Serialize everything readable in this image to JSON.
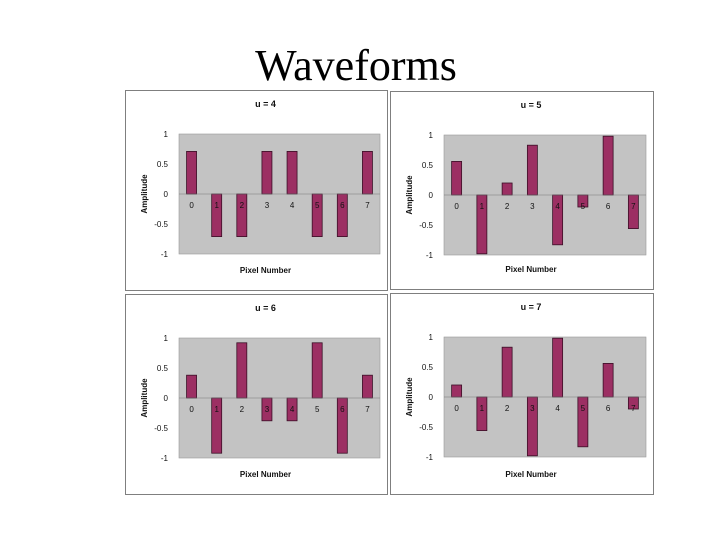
{
  "slide": {
    "title": "Waveforms"
  },
  "colors": {
    "bar": "#9c2f63",
    "bar_stroke": "#3a0f26",
    "plot_bg": "#c3c3c3",
    "frame": "#7f7f7f"
  },
  "chart_data": [
    {
      "type": "bar",
      "title": "u = 4",
      "xlabel": "Pixel Number",
      "ylabel": "Amplitude",
      "categories": [
        "0",
        "1",
        "2",
        "3",
        "4",
        "5",
        "6",
        "7"
      ],
      "values": [
        0.71,
        -0.71,
        -0.71,
        0.71,
        0.71,
        -0.71,
        -0.71,
        0.71
      ],
      "ylim": [
        -1,
        1
      ],
      "yticks": [
        "1",
        "0.5",
        "0",
        "-0.5",
        "-1"
      ]
    },
    {
      "type": "bar",
      "title": "u = 5",
      "xlabel": "Pixel Number",
      "ylabel": "Amplitude",
      "categories": [
        "0",
        "1",
        "2",
        "3",
        "4",
        "5",
        "6",
        "7"
      ],
      "values": [
        0.56,
        -0.98,
        0.2,
        0.83,
        -0.83,
        -0.2,
        0.98,
        -0.56
      ],
      "ylim": [
        -1,
        1
      ],
      "yticks": [
        "1",
        "0.5",
        "0",
        "-0.5",
        "-1"
      ]
    },
    {
      "type": "bar",
      "title": "u = 6",
      "xlabel": "Pixel Number",
      "ylabel": "Amplitude",
      "categories": [
        "0",
        "1",
        "2",
        "3",
        "4",
        "5",
        "6",
        "7"
      ],
      "values": [
        0.38,
        -0.92,
        0.92,
        -0.38,
        -0.38,
        0.92,
        -0.92,
        0.38
      ],
      "ylim": [
        -1,
        1
      ],
      "yticks": [
        "1",
        "0.5",
        "0",
        "-0.5",
        "-1"
      ]
    },
    {
      "type": "bar",
      "title": "u = 7",
      "xlabel": "Pixel Number",
      "ylabel": "Amplitude",
      "categories": [
        "0",
        "1",
        "2",
        "3",
        "4",
        "5",
        "6",
        "7"
      ],
      "values": [
        0.2,
        -0.56,
        0.83,
        -0.98,
        0.98,
        -0.83,
        0.56,
        -0.2
      ],
      "ylim": [
        -1,
        1
      ],
      "yticks": [
        "1",
        "0.5",
        "0",
        "-0.5",
        "-1"
      ]
    }
  ]
}
